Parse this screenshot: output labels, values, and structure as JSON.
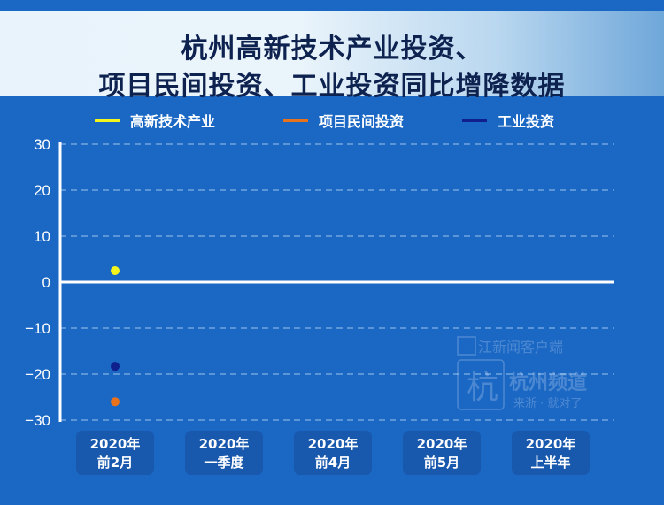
{
  "title_lines": [
    "杭州高新技术产业投资、",
    "项目民间投资、工业投资同比增降数据"
  ],
  "colors": {
    "background": "#1a67c4",
    "series_high_tech": "#f5f51e",
    "series_private": "#e8731c",
    "series_industrial": "#0f1f8c"
  },
  "watermark": {
    "line1": "浙江新闻客户端",
    "line2": "杭州频道",
    "line3": "来浙 · 就对了"
  },
  "chart_data": {
    "type": "scatter",
    "categories": [
      [
        "2020年",
        "前2月"
      ],
      [
        "2020年",
        "一季度"
      ],
      [
        "2020年",
        "前4月"
      ],
      [
        "2020年",
        "前5月"
      ],
      [
        "2020年",
        "上半年"
      ]
    ],
    "series": [
      {
        "name": "高新技术产业",
        "color": "#f5f51e",
        "values": [
          2.5,
          null,
          null,
          null,
          null
        ]
      },
      {
        "name": "项目民间投资",
        "color": "#e8731c",
        "values": [
          -26.0,
          null,
          null,
          null,
          null
        ]
      },
      {
        "name": "工业投资",
        "color": "#0f1f8c",
        "values": [
          -18.3,
          null,
          null,
          null,
          null
        ]
      }
    ],
    "yticks": [
      30,
      20,
      10,
      0,
      -10,
      -20,
      -30
    ],
    "ylim": [
      -30,
      30
    ],
    "grid": "dashed horizontal",
    "legend": "top"
  }
}
